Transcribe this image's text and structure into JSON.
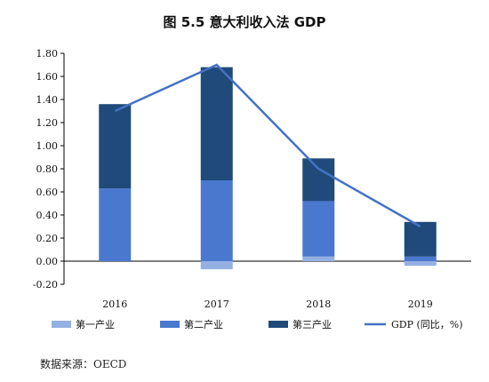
{
  "chart_data": {
    "type": "bar",
    "title": "图 5.5 意大利收入法 GDP",
    "categories": [
      "2016",
      "2017",
      "2018",
      "2019"
    ],
    "y_ticks": [
      "1.80",
      "1.60",
      "1.40",
      "1.20",
      "1.00",
      "0.80",
      "0.60",
      "0.40",
      "0.20",
      "0.00",
      "-0.20"
    ],
    "ylim": [
      -0.2,
      1.8
    ],
    "grid": false,
    "legend_position": "bottom",
    "stacked": true,
    "series": [
      {
        "name": "第一产业",
        "kind": "bar",
        "color": "#93b0e2",
        "values": [
          0.0,
          -0.07,
          0.04,
          -0.04
        ]
      },
      {
        "name": "第二产业",
        "kind": "bar",
        "color": "#4a78cf",
        "values": [
          0.63,
          0.7,
          0.48,
          0.04
        ]
      },
      {
        "name": "第三产业",
        "kind": "bar",
        "color": "#1f4a7a",
        "values": [
          0.73,
          0.98,
          0.37,
          0.3
        ]
      },
      {
        "name": "GDP (同比，%)",
        "kind": "line",
        "color": "#4472c4",
        "values": [
          1.3,
          1.7,
          0.8,
          0.3
        ]
      }
    ]
  },
  "source_note": "数据来源：OECD"
}
